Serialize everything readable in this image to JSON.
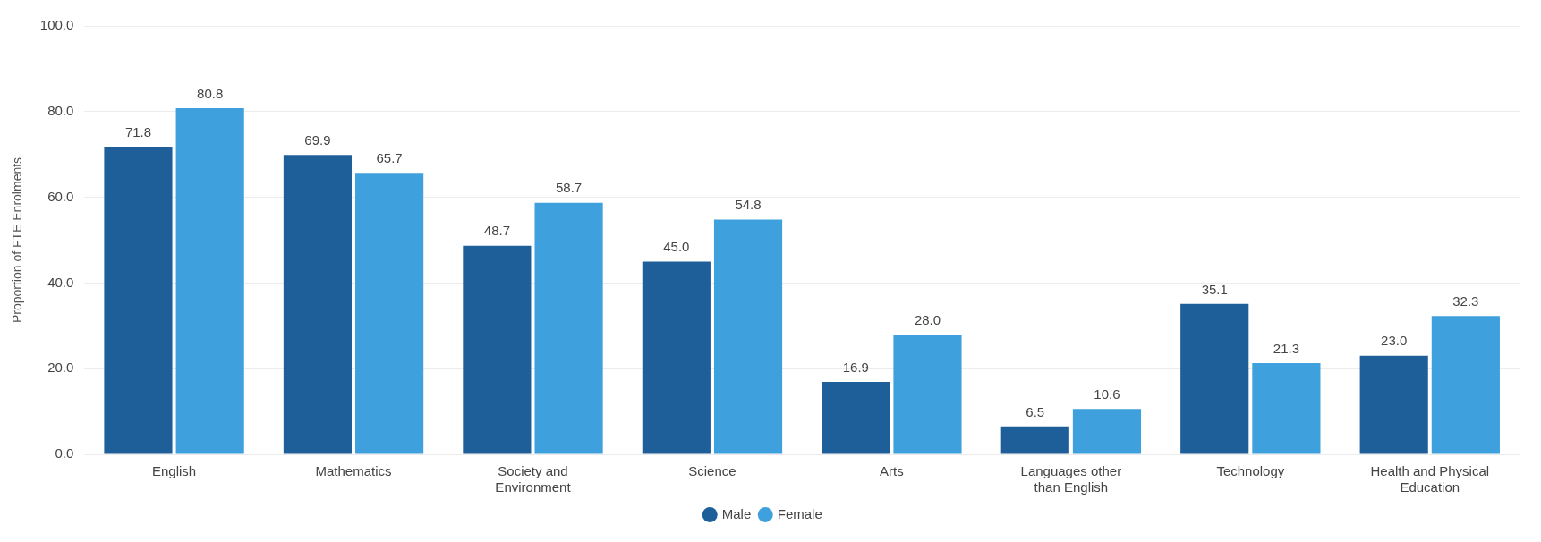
{
  "chart_data": {
    "type": "bar",
    "ylabel": "Proportion of FTE Enrolments",
    "categories": [
      "English",
      "Mathematics",
      "Society and Environment",
      "Science",
      "Arts",
      "Languages other than English",
      "Technology",
      "Health and Physical Education"
    ],
    "series": [
      {
        "name": "Male",
        "color": "#1f5f99",
        "values": [
          71.8,
          69.9,
          48.7,
          45.0,
          16.9,
          6.5,
          35.1,
          23.0
        ],
        "value_labels": [
          "71.8",
          "69.9",
          "48.7",
          "45.0",
          "16.9",
          "6.5",
          "35.1",
          "23.0"
        ]
      },
      {
        "name": "Female",
        "color": "#3ea1de",
        "values": [
          80.8,
          65.7,
          58.7,
          54.8,
          28.0,
          10.6,
          21.3,
          32.3
        ],
        "value_labels": [
          "80.8",
          "65.7",
          "58.7",
          "54.8",
          "28.0",
          "10.6",
          "21.3",
          "32.3"
        ]
      }
    ],
    "ylim": [
      0,
      100
    ],
    "yticks": [
      {
        "value": 0,
        "label": "0.0"
      },
      {
        "value": 20,
        "label": "20.0"
      },
      {
        "value": 40,
        "label": "40.0"
      },
      {
        "value": 60,
        "label": "60.0"
      },
      {
        "value": 80,
        "label": "80.0"
      },
      {
        "value": 100,
        "label": "100.0"
      }
    ],
    "grid": "y",
    "legend": "bottom"
  }
}
